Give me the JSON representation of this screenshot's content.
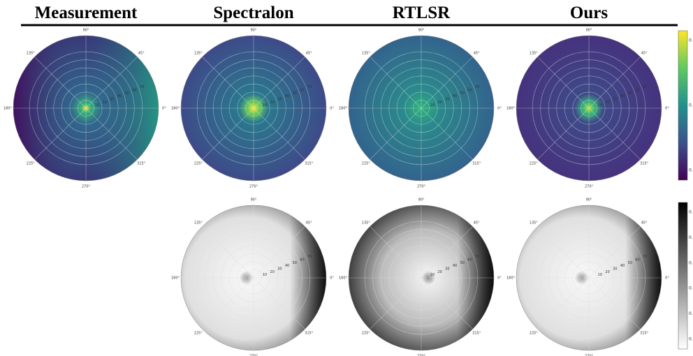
{
  "header": {
    "columns": [
      "Measurement",
      "Spectralon",
      "RTLSR",
      "Ours"
    ]
  },
  "polar": {
    "angle_labels": [
      "0°",
      "45°",
      "90°",
      "135°",
      "180°",
      "225°",
      "270°",
      "315°"
    ],
    "radial_labels": [
      "10",
      "20",
      "30",
      "40",
      "50",
      "60",
      "70"
    ]
  },
  "colorbars": [
    {
      "labels": [
        "0.3",
        "0.2",
        "0.1"
      ]
    },
    {
      "labels": [
        "0.5",
        "0.4",
        "0.3",
        "0.2",
        "0.1",
        "0.0"
      ]
    }
  ]
}
